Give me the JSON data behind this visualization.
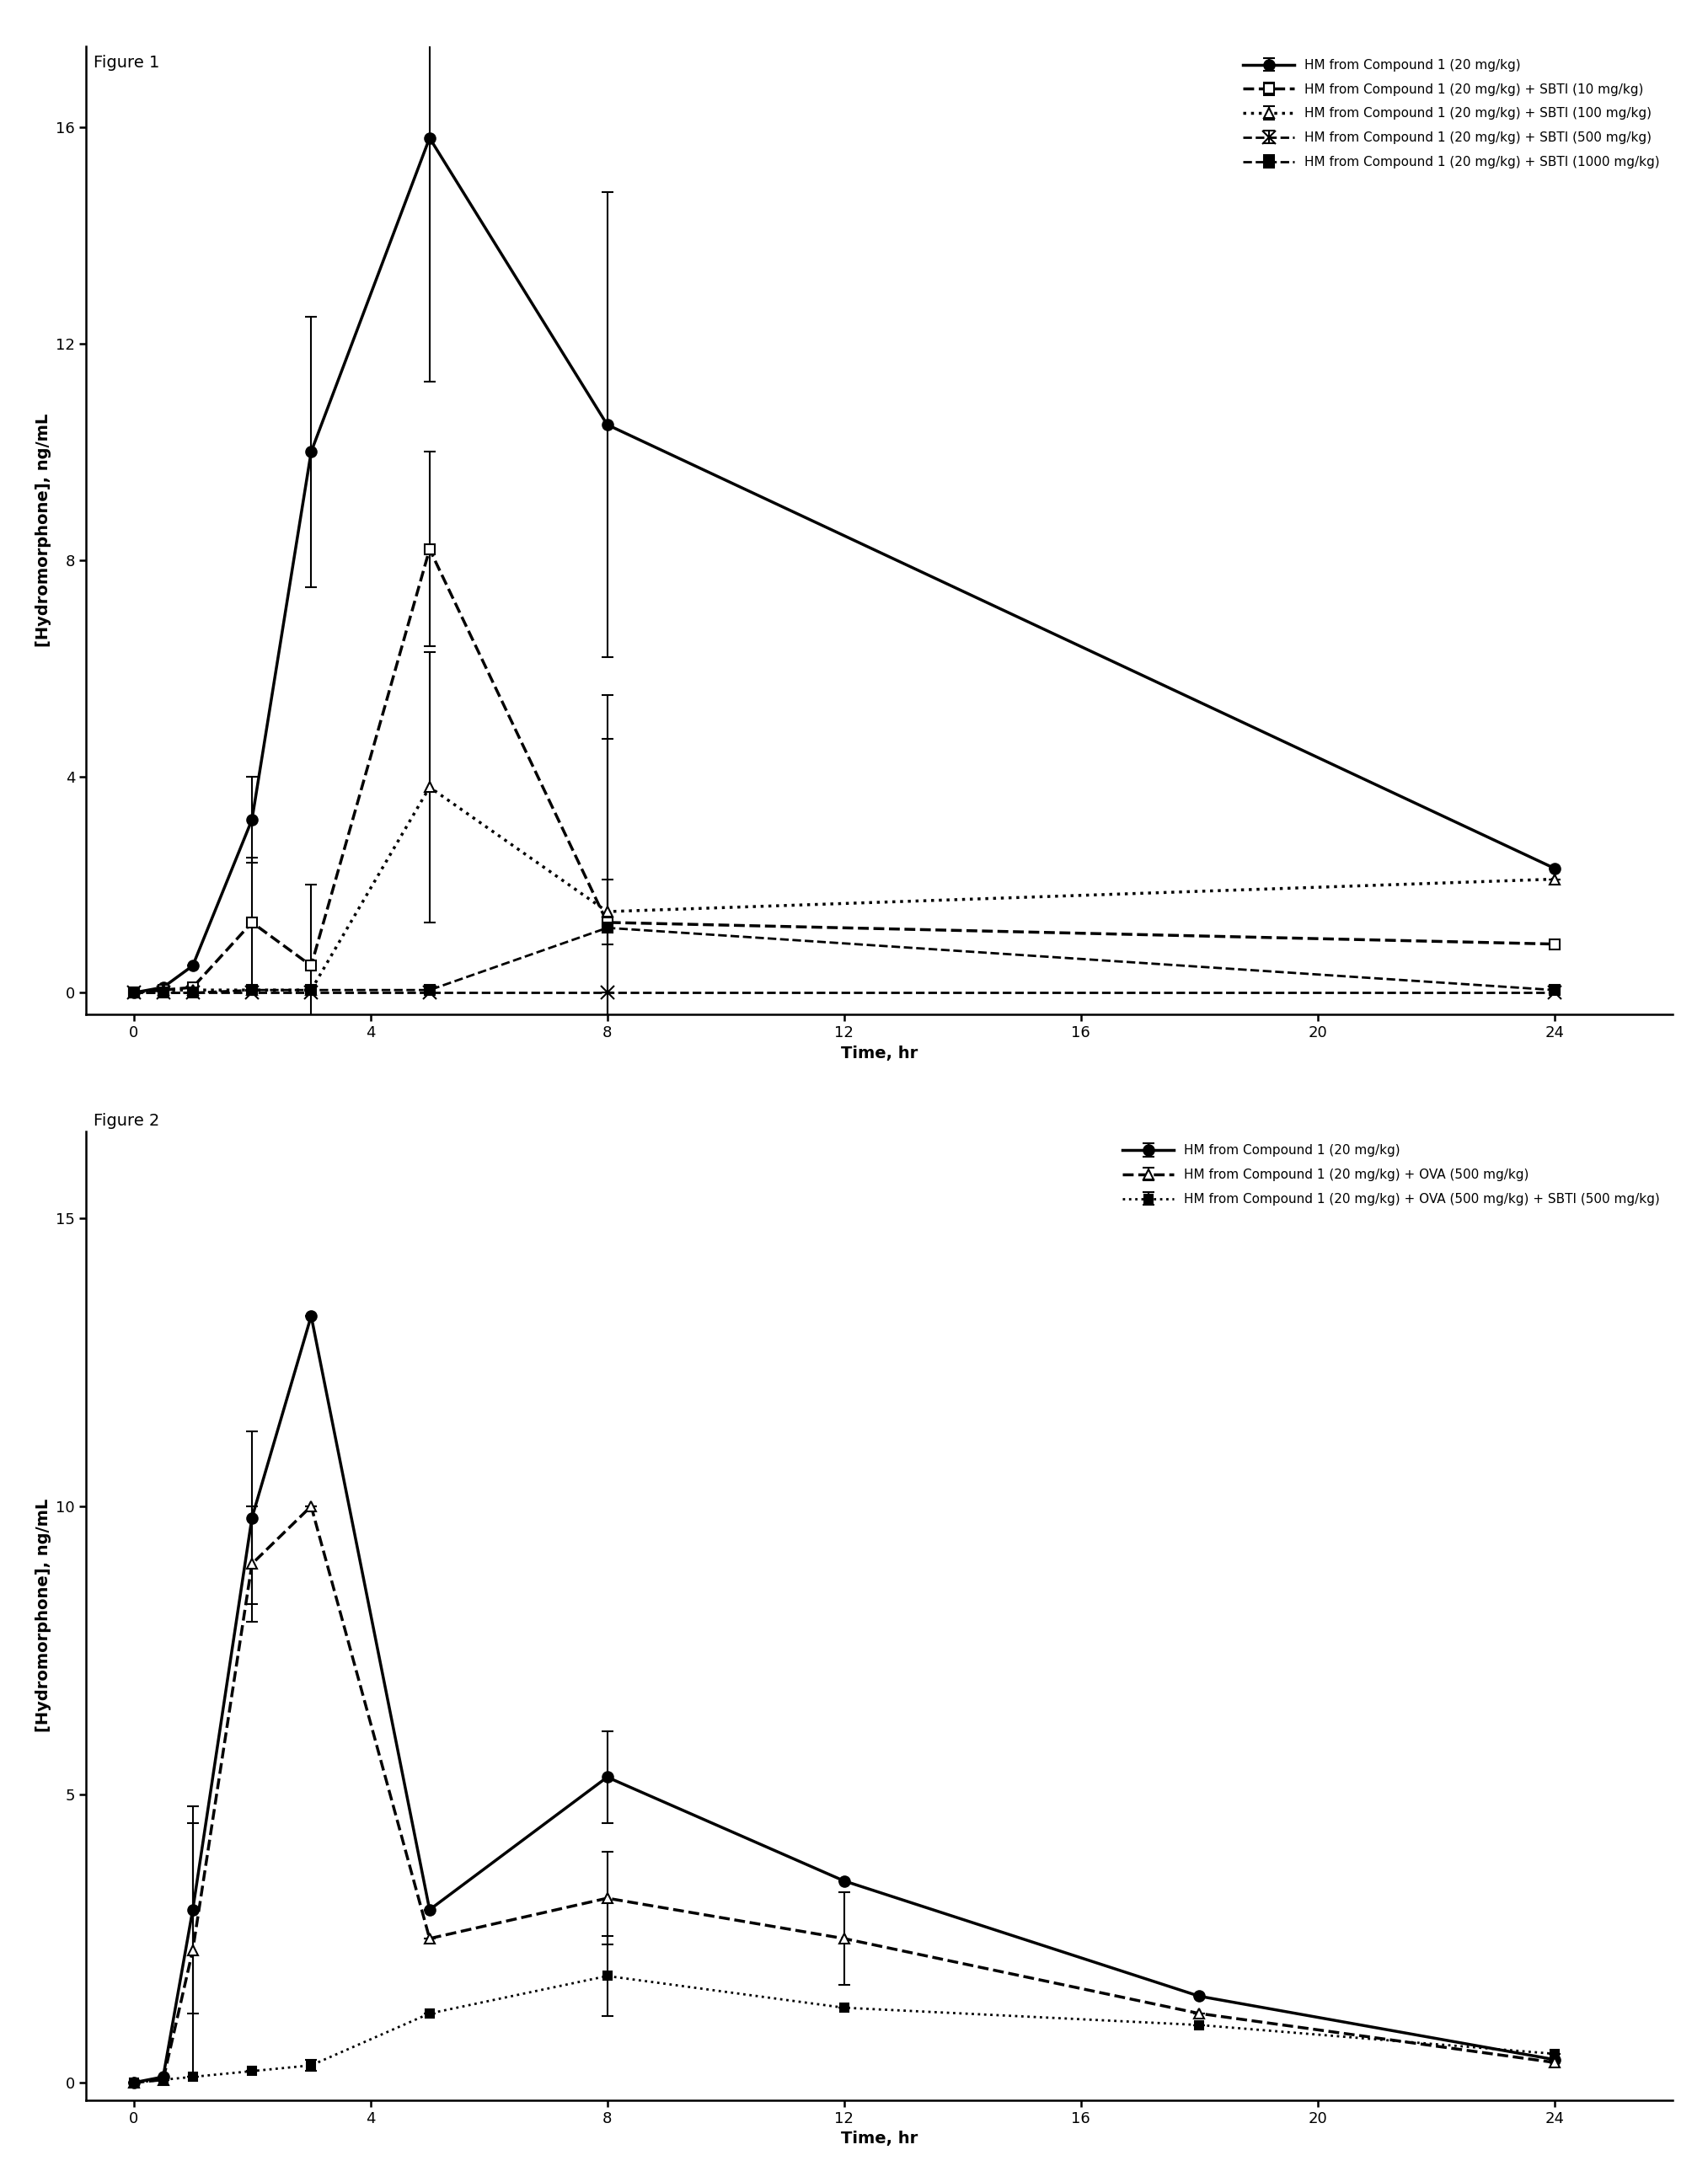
{
  "fig1": {
    "title": "Figure 1",
    "ylabel": "[Hydromorphone], ng/mL",
    "xlabel": "Time, hr",
    "xlim": [
      -0.8,
      26
    ],
    "ylim": [
      -0.4,
      17.5
    ],
    "xticks": [
      0,
      4,
      8,
      12,
      16,
      20,
      24
    ],
    "yticks": [
      0,
      4,
      8,
      12,
      16
    ],
    "series": [
      {
        "label": "HM from Compound 1 (20 mg/kg)",
        "x": [
          0,
          0.5,
          1,
          2,
          3,
          5,
          8,
          24
        ],
        "y": [
          0,
          0.1,
          0.5,
          3.2,
          10.0,
          15.8,
          10.5,
          2.3
        ],
        "yerr": [
          0,
          0,
          0,
          0.8,
          2.5,
          4.5,
          4.3,
          0
        ],
        "linestyle": "-",
        "linewidth": 2.5,
        "marker": "o",
        "markersize": 9,
        "color": "#000000",
        "markerfacecolor": "#000000",
        "dashes": []
      },
      {
        "label": "HM from Compound 1 (20 mg/kg) + SBTI (10 mg/kg)",
        "x": [
          0,
          0.5,
          1,
          2,
          3,
          5,
          8,
          24
        ],
        "y": [
          0,
          0.05,
          0.1,
          1.3,
          0.5,
          8.2,
          1.3,
          0.9
        ],
        "yerr": [
          0,
          0,
          0,
          1.2,
          1.5,
          1.8,
          4.2,
          0
        ],
        "linestyle": "--",
        "linewidth": 2.5,
        "marker": "s",
        "markersize": 9,
        "color": "#000000",
        "markerfacecolor": "#ffffff",
        "dashes": [
          8,
          4
        ]
      },
      {
        "label": "HM from Compound 1 (20 mg/kg) + SBTI (100 mg/kg)",
        "x": [
          0,
          0.5,
          1,
          2,
          3,
          5,
          8,
          24
        ],
        "y": [
          0,
          0.05,
          0.05,
          0.05,
          0.05,
          3.8,
          1.5,
          2.1
        ],
        "yerr": [
          0,
          0,
          0,
          0,
          0,
          2.5,
          0.6,
          0
        ],
        "linestyle": ":",
        "linewidth": 2.5,
        "marker": "^",
        "markersize": 9,
        "color": "#000000",
        "markerfacecolor": "#ffffff",
        "dashes": []
      },
      {
        "label": "HM from Compound 1 (20 mg/kg) + SBTI (500 mg/kg)",
        "x": [
          0,
          0.5,
          1,
          2,
          3,
          5,
          8,
          24
        ],
        "y": [
          0,
          0,
          0,
          0,
          0,
          0,
          0,
          0
        ],
        "yerr": [
          0,
          0,
          0,
          0,
          0,
          0,
          0,
          0
        ],
        "linestyle": "--",
        "linewidth": 2.0,
        "marker": "x",
        "markersize": 12,
        "color": "#000000",
        "markerfacecolor": "#000000",
        "dashes": [
          6,
          3
        ]
      },
      {
        "label": "HM from Compound 1 (20 mg/kg) + SBTI (1000 mg/kg)",
        "x": [
          0,
          0.5,
          1,
          2,
          3,
          5,
          8,
          24
        ],
        "y": [
          0,
          0.0,
          0.0,
          0.05,
          0.05,
          0.05,
          1.2,
          0.05
        ],
        "yerr": [
          0,
          0,
          0,
          0,
          0,
          0,
          3.5,
          0
        ],
        "linestyle": "--",
        "linewidth": 2.0,
        "marker": "s",
        "markersize": 8,
        "color": "#000000",
        "markerfacecolor": "#000000",
        "dashes": [
          4,
          2
        ]
      }
    ]
  },
  "fig2": {
    "title": "Figure 2",
    "ylabel": "[Hydromorphone], ng/mL",
    "xlabel": "Time, hr",
    "xlim": [
      -0.8,
      26
    ],
    "ylim": [
      -0.3,
      16.5
    ],
    "xticks": [
      0,
      4,
      8,
      12,
      16,
      20,
      24
    ],
    "yticks": [
      0,
      5,
      10,
      15
    ],
    "series": [
      {
        "label": "HM from Compound 1 (20 mg/kg)",
        "x": [
          0,
          0.5,
          1,
          2,
          3,
          5,
          8,
          12,
          18,
          24
        ],
        "y": [
          0,
          0.1,
          3.0,
          9.8,
          13.3,
          3.0,
          5.3,
          3.5,
          1.5,
          0.4
        ],
        "yerr": [
          0,
          0,
          1.8,
          1.5,
          0,
          0,
          0.8,
          0,
          0,
          0
        ],
        "linestyle": "-",
        "linewidth": 2.5,
        "marker": "o",
        "markersize": 9,
        "color": "#000000",
        "markerfacecolor": "#000000",
        "dashes": []
      },
      {
        "label": "HM from Compound 1 (20 mg/kg) + OVA (500 mg/kg)",
        "x": [
          0,
          0.5,
          1,
          2,
          3,
          5,
          8,
          12,
          18,
          24
        ],
        "y": [
          0,
          0.05,
          2.3,
          9.0,
          10.0,
          2.5,
          3.2,
          2.5,
          1.2,
          0.35
        ],
        "yerr": [
          0,
          0,
          2.2,
          1.0,
          0,
          0,
          0.8,
          0.8,
          0,
          0
        ],
        "linestyle": "--",
        "linewidth": 2.5,
        "marker": "^",
        "markersize": 9,
        "color": "#000000",
        "markerfacecolor": "#ffffff",
        "dashes": [
          8,
          4
        ]
      },
      {
        "label": "HM from Compound 1 (20 mg/kg) + OVA (500 mg/kg) + SBTI (500 mg/kg)",
        "x": [
          0,
          0.5,
          1,
          2,
          3,
          5,
          8,
          12,
          18,
          24
        ],
        "y": [
          0,
          0.05,
          0.1,
          0.2,
          0.3,
          1.2,
          1.85,
          1.3,
          1.0,
          0.5
        ],
        "yerr": [
          0,
          0,
          0,
          0,
          0.1,
          0,
          0.7,
          0,
          0,
          0
        ],
        "linestyle": ":",
        "linewidth": 2.0,
        "marker": "s",
        "markersize": 7,
        "color": "#000000",
        "markerfacecolor": "#000000",
        "dashes": []
      }
    ]
  },
  "figure_label_fontsize": 14,
  "axis_label_fontsize": 14,
  "tick_fontsize": 13,
  "legend_fontsize": 11
}
